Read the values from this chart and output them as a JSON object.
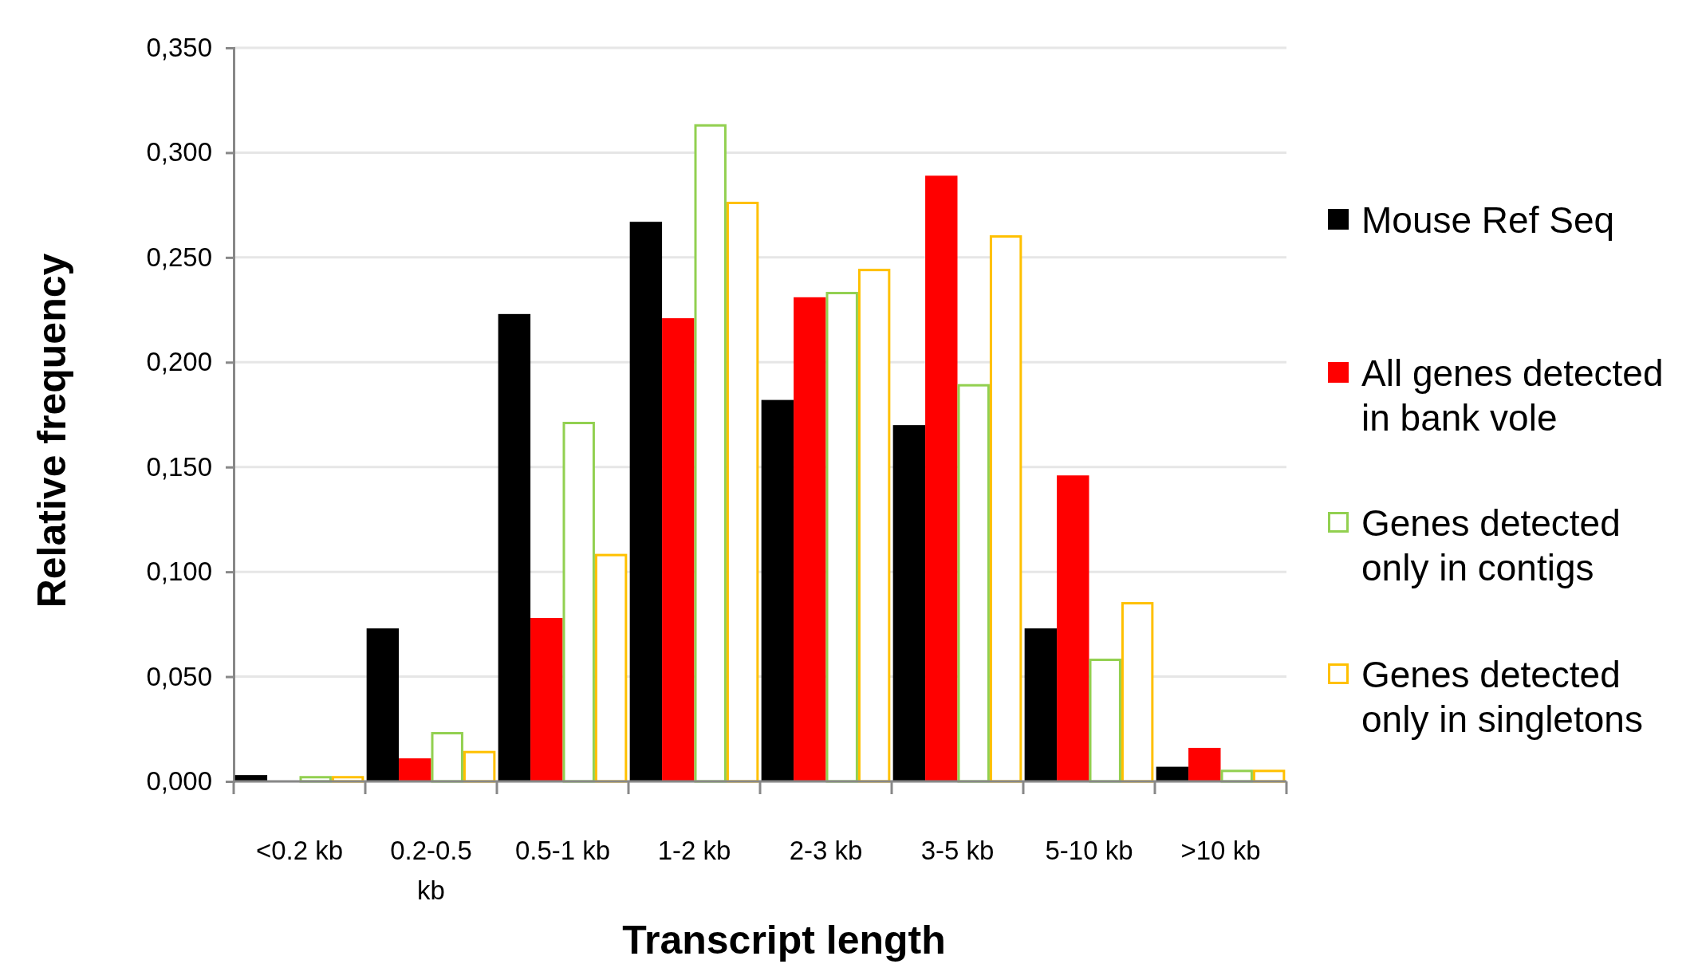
{
  "chart_data": {
    "type": "bar",
    "xlabel": "Transcript length",
    "ylabel": "Relative frequency",
    "categories": [
      "<0.2 kb",
      "0.2-0.5 kb",
      "0.5-1 kb",
      "1-2 kb",
      "2-3 kb",
      "3-5 kb",
      "5-10 kb",
      ">10 kb"
    ],
    "series": [
      {
        "name": "Mouse Ref Seq",
        "color": "#000000",
        "values": [
          0.003,
          0.073,
          0.223,
          0.267,
          0.182,
          0.17,
          0.073,
          0.007
        ]
      },
      {
        "name": "All genes detected in bank vole",
        "color": "#ff0000",
        "values": [
          null,
          0.011,
          0.078,
          0.221,
          0.231,
          0.289,
          0.146,
          0.016
        ]
      },
      {
        "name": "Genes detected only in contigs",
        "color": "#92d050",
        "values": [
          0.002,
          0.023,
          0.171,
          0.313,
          0.233,
          0.189,
          0.058,
          0.005
        ]
      },
      {
        "name": "Genes detected only in singletons",
        "color": "#ffc000",
        "values": [
          0.002,
          0.014,
          0.108,
          0.276,
          0.244,
          0.26,
          0.085,
          0.005
        ]
      }
    ],
    "ylim": [
      0,
      0.35
    ],
    "yticks": [
      {
        "value": 0,
        "label": "0,000"
      },
      {
        "value": 0.05,
        "label": "0,050"
      },
      {
        "value": 0.1,
        "label": "0,100"
      },
      {
        "value": 0.15,
        "label": "0,150"
      },
      {
        "value": 0.2,
        "label": "0,200"
      },
      {
        "value": 0.25,
        "label": "0,250"
      },
      {
        "value": 0.3,
        "label": "0,300"
      },
      {
        "value": 0.35,
        "label": "0,350"
      }
    ],
    "grid": "y",
    "legend": "right"
  }
}
